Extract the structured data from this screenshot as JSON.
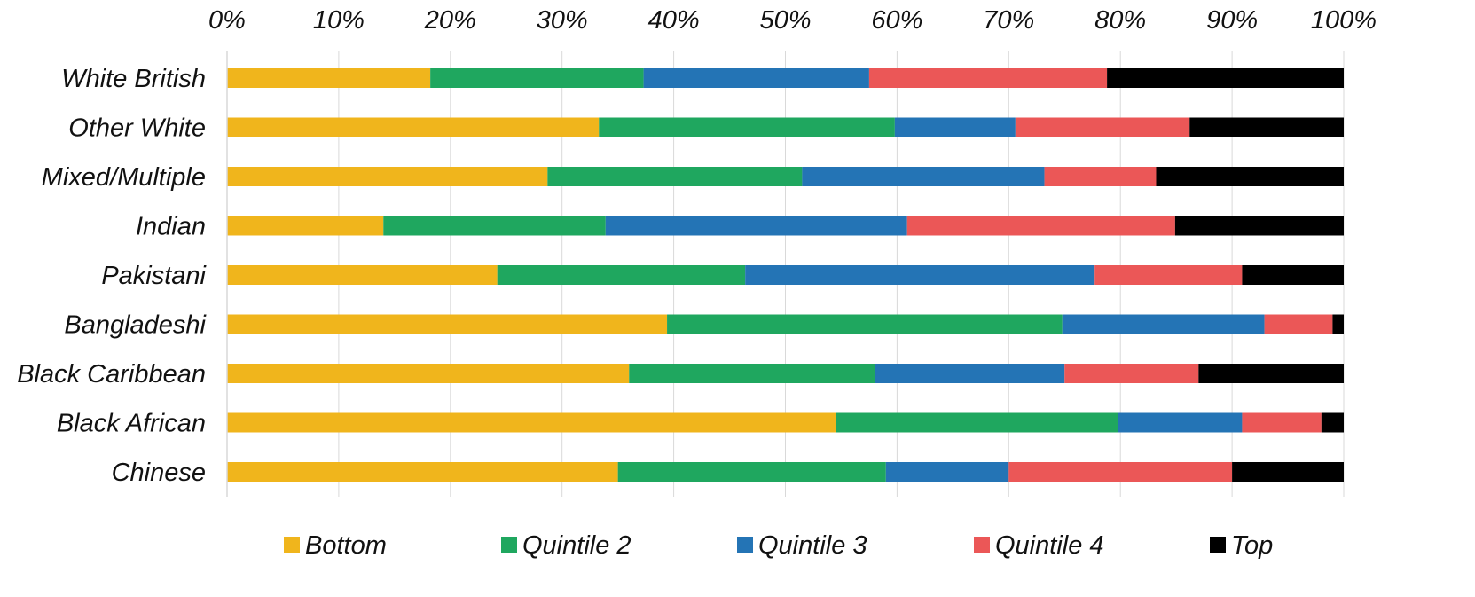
{
  "chart_data": {
    "type": "bar",
    "orientation": "horizontal",
    "stacked": true,
    "percent_stacked": true,
    "title": "",
    "xlabel": "",
    "ylabel": "",
    "xlim": [
      0,
      100
    ],
    "x_ticks": [
      "0%",
      "10%",
      "20%",
      "30%",
      "40%",
      "50%",
      "60%",
      "70%",
      "80%",
      "90%",
      "100%"
    ],
    "x_axis_position": "top",
    "grid": true,
    "legend_position": "bottom",
    "categories": [
      "White British",
      "Other White",
      "Mixed/Multiple",
      "Indian",
      "Pakistani",
      "Bangladeshi",
      "Black Caribbean",
      "Black African",
      "Chinese"
    ],
    "series": [
      {
        "name": "Bottom",
        "color": "#F0B51C",
        "values": [
          18.2,
          33.3,
          28.7,
          14.0,
          24.2,
          39.4,
          36.0,
          54.5,
          35.0
        ]
      },
      {
        "name": "Quintile 2",
        "color": "#1FA75F",
        "values": [
          19.1,
          26.5,
          22.8,
          19.9,
          22.2,
          35.4,
          22.0,
          25.3,
          24.0
        ]
      },
      {
        "name": "Quintile 3",
        "color": "#2474B5",
        "values": [
          20.2,
          10.8,
          21.7,
          27.0,
          31.3,
          18.1,
          17.0,
          11.1,
          11.0
        ]
      },
      {
        "name": "Quintile 4",
        "color": "#EB5757",
        "values": [
          21.3,
          15.6,
          10.0,
          24.0,
          13.2,
          6.1,
          12.0,
          7.1,
          20.0
        ]
      },
      {
        "name": "Top",
        "color": "#000000",
        "values": [
          21.2,
          13.8,
          16.8,
          15.1,
          9.1,
          1.0,
          13.0,
          2.0,
          10.0
        ]
      }
    ]
  }
}
